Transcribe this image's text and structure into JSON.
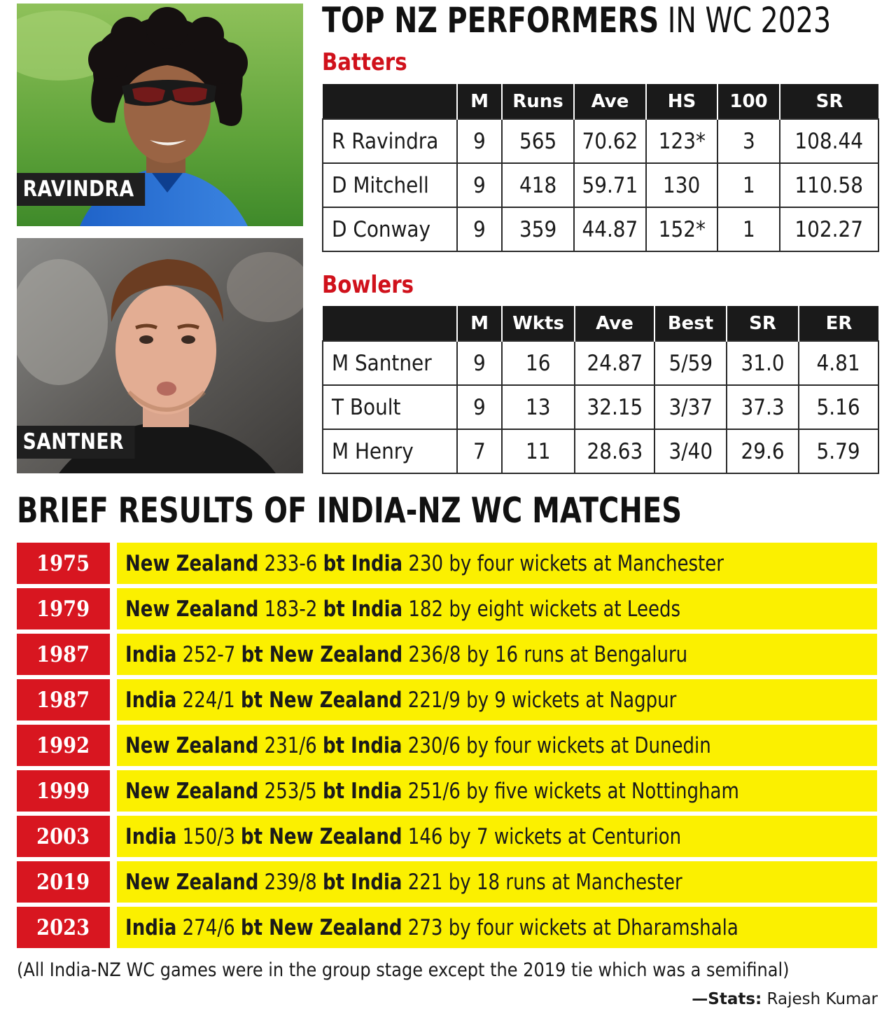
{
  "title": {
    "bold": "TOP NZ PERFORMERS",
    "light": " IN WC 2023"
  },
  "photos": {
    "ravindra": {
      "label": "RAVINDRA"
    },
    "santner": {
      "label": "SANTNER"
    }
  },
  "batters": {
    "heading": "Batters",
    "columns": [
      "",
      "M",
      "Runs",
      "Ave",
      "HS",
      "100",
      "SR"
    ],
    "rows": [
      [
        "R Ravindra",
        "9",
        "565",
        "70.62",
        "123*",
        "3",
        "108.44"
      ],
      [
        "D Mitchell",
        "9",
        "418",
        "59.71",
        "130",
        "1",
        "110.58"
      ],
      [
        "D Conway",
        "9",
        "359",
        "44.87",
        "152*",
        "1",
        "102.27"
      ]
    ]
  },
  "bowlers": {
    "heading": "Bowlers",
    "columns": [
      "",
      "M",
      "Wkts",
      "Ave",
      "Best",
      "SR",
      "ER"
    ],
    "rows": [
      [
        "M Santner",
        "9",
        "16",
        "24.87",
        "5/59",
        "31.0",
        "4.81"
      ],
      [
        "T Boult",
        "9",
        "13",
        "32.15",
        "3/37",
        "37.3",
        "5.16"
      ],
      [
        "M Henry",
        "7",
        "11",
        "28.63",
        "3/40",
        "29.6",
        "5.79"
      ]
    ]
  },
  "results": {
    "heading": "BRIEF RESULTS OF INDIA-NZ WC MATCHES",
    "matches": [
      {
        "year": "1975",
        "winner": "New Zealand",
        "winner_score": " 233-6 ",
        "bt": "bt",
        "loser": " India",
        "rest": " 230 by four wickets at Manchester"
      },
      {
        "year": "1979",
        "winner": "New Zealand",
        "winner_score": " 183-2 ",
        "bt": "bt",
        "loser": " India",
        "rest": " 182 by eight wickets at Leeds"
      },
      {
        "year": "1987",
        "winner": "India",
        "winner_score": " 252-7 ",
        "bt": "bt",
        "loser": " New Zealand",
        "rest": " 236/8 by 16 runs at Bengaluru"
      },
      {
        "year": "1987",
        "winner": "India",
        "winner_score": " 224/1 ",
        "bt": "bt",
        "loser": " New Zealand",
        "rest": " 221/9 by 9 wickets at Nagpur"
      },
      {
        "year": "1992",
        "winner": "New Zealand",
        "winner_score": " 231/6 ",
        "bt": "bt",
        "loser": " India",
        "rest": " 230/6 by four wickets at Dunedin"
      },
      {
        "year": "1999",
        "winner": "New Zealand",
        "winner_score": " 253/5 ",
        "bt": "bt",
        "loser": " India",
        "rest": " 251/6 by five wickets at Nottingham"
      },
      {
        "year": "2003",
        "winner": "India",
        "winner_score": " 150/3 ",
        "bt": "bt",
        "loser": " New Zealand",
        "rest": " 146 by 7 wickets at Centurion"
      },
      {
        "year": "2019",
        "winner": "New Zealand",
        "winner_score": " 239/8 ",
        "bt": "bt",
        "loser": " India",
        "rest": " 221 by 18 runs at Manchester"
      },
      {
        "year": "2023",
        "winner": "India",
        "winner_score": " 274/6 ",
        "bt": "bt",
        "loser": " New Zealand",
        "rest": " 273 by four wickets at Dharamshala"
      }
    ]
  },
  "footnote": "(All India-NZ WC games were in the group stage except the 2019 tie which was a semifinal)",
  "credit": {
    "prefix": "—Stats:",
    "name": " Rajesh Kumar"
  },
  "colors": {
    "accent_red": "#d0111b",
    "year_red": "#d81620",
    "result_yellow": "#fbf000",
    "header_black": "#1a1a1a"
  }
}
